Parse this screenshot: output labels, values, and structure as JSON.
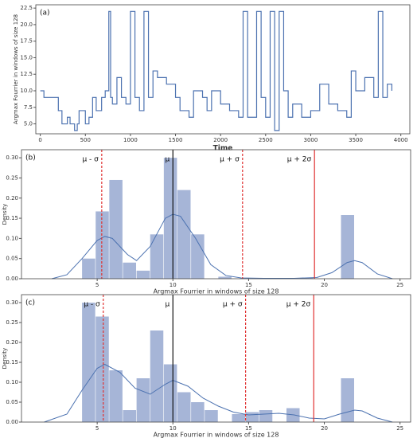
{
  "chart_data": [
    {
      "type": "line",
      "label": "(a)",
      "xlabel": "Time",
      "ylabel": "Argmax Fourrier in windows of size 128",
      "color": "#4c72b0",
      "step": true,
      "x": [
        0,
        40,
        60,
        150,
        200,
        240,
        260,
        300,
        330,
        360,
        380,
        410,
        430,
        450,
        470,
        500,
        540,
        580,
        620,
        680,
        720,
        760,
        780,
        800,
        850,
        900,
        950,
        1000,
        1050,
        1100,
        1150,
        1200,
        1250,
        1300,
        1400,
        1500,
        1550,
        1600,
        1650,
        1700,
        1800,
        1850,
        1900,
        2000,
        2100,
        2200,
        2250,
        2300,
        2400,
        2450,
        2500,
        2550,
        2600,
        2650,
        2700,
        2750,
        2800,
        2900,
        3000,
        3100,
        3200,
        3300,
        3400,
        3450,
        3500,
        3600,
        3700,
        3750,
        3800,
        3850,
        3900
      ],
      "values": [
        10,
        9,
        9,
        9,
        7,
        5,
        5,
        6,
        5,
        5,
        4,
        5,
        7,
        7,
        7,
        5,
        6,
        9,
        7,
        9,
        10,
        22,
        9,
        8,
        12,
        9,
        8,
        22,
        9,
        7,
        22,
        9,
        13,
        12,
        11,
        9,
        7,
        7,
        6,
        10,
        9,
        7,
        10,
        8,
        7,
        6,
        22,
        6,
        22,
        9,
        6,
        22,
        4,
        22,
        10,
        6,
        8,
        6,
        7,
        11,
        8,
        7,
        6,
        13,
        10,
        12,
        9,
        22,
        9,
        11,
        10
      ],
      "xlim": [
        -50,
        4100
      ],
      "ylim": [
        3.5,
        23
      ],
      "xticks": [
        0,
        500,
        1000,
        1500,
        2000,
        2500,
        3000,
        3500,
        4000
      ],
      "yticks": [
        {
          "value": 5,
          "label": "5.0"
        },
        7.5,
        {
          "value": 10,
          "label": "10.0"
        },
        12.5,
        {
          "value": 15,
          "label": "15.0"
        },
        17.5,
        {
          "value": 20,
          "label": "20.0"
        },
        22.5
      ]
    },
    {
      "type": "histogram",
      "label": "(b)",
      "xlabel": "Argmax Fourrier in windows of size 128",
      "ylabel": "Density",
      "color": "#a6b5d7",
      "kde_color": "#4c72b0",
      "bins": [
        4,
        4.9,
        5.8,
        6.7,
        7.6,
        8.5,
        9.4,
        10.3,
        11.2,
        12.1,
        13,
        13.9,
        14.8,
        15.7,
        16.6,
        17.5,
        18.4,
        19.3,
        20.2,
        21.1,
        22
      ],
      "counts": [
        0.05,
        0.167,
        0.245,
        0.04,
        0.02,
        0.11,
        0.3,
        0.22,
        0.11,
        0,
        0.005,
        0,
        0,
        0,
        0,
        0,
        0.002,
        0,
        0,
        0.158
      ],
      "kde": {
        "x": [
          2,
          3,
          4,
          5,
          5.5,
          6,
          7,
          7.6,
          8.5,
          9.5,
          10,
          10.5,
          11.5,
          12.5,
          13.5,
          14.5,
          16,
          18,
          19.5,
          20.5,
          21.5,
          22,
          22.5,
          23.5,
          24.5
        ],
        "values": [
          0,
          0.01,
          0.05,
          0.095,
          0.105,
          0.1,
          0.06,
          0.045,
          0.08,
          0.15,
          0.16,
          0.155,
          0.1,
          0.035,
          0.008,
          0.002,
          0.001,
          0.001,
          0.003,
          0.015,
          0.04,
          0.045,
          0.04,
          0.012,
          0
        ]
      },
      "vlines": [
        {
          "label": "μ - σ",
          "value": 5.3,
          "color": "#e03030",
          "linestyle": "dashed"
        },
        {
          "label": "μ",
          "value": 10,
          "color": "#111111",
          "linestyle": "solid"
        },
        {
          "label": "μ + σ",
          "value": 14.6,
          "color": "#e03030",
          "linestyle": "dashed"
        },
        {
          "label": "μ + 2σ",
          "value": 19.35,
          "color": "#e03030",
          "linestyle": "solid"
        }
      ],
      "xlim": [
        0,
        25.7
      ],
      "ylim": [
        0,
        0.32
      ],
      "xticks": [
        5,
        10,
        15,
        20,
        25
      ],
      "yticks": [
        {
          "value": 0,
          "label": "0.00"
        },
        {
          "value": 0.05,
          "label": "0.05"
        },
        {
          "value": 0.1,
          "label": "0.10"
        },
        {
          "value": 0.15,
          "label": "0.15"
        },
        {
          "value": 0.2,
          "label": "0.20"
        },
        {
          "value": 0.25,
          "label": "0.25"
        },
        {
          "value": 0.3,
          "label": "0.30"
        }
      ]
    },
    {
      "type": "histogram",
      "label": "(c)",
      "xlabel": "Argmax Fourrier in windows of size 128",
      "ylabel": "Density",
      "color": "#a6b5d7",
      "kde_color": "#4c72b0",
      "bins": [
        4,
        4.9,
        5.8,
        6.7,
        7.6,
        8.5,
        9.4,
        10.3,
        11.2,
        12.1,
        13,
        13.9,
        14.8,
        15.7,
        16.6,
        17.5,
        18.4,
        19.3,
        20.2,
        21.1,
        22
      ],
      "counts": [
        0.3,
        0.265,
        0.13,
        0.03,
        0.11,
        0.23,
        0.145,
        0.075,
        0.05,
        0.03,
        0,
        0.02,
        0.025,
        0.03,
        0,
        0.035,
        0,
        0,
        0,
        0.11
      ],
      "kde": {
        "x": [
          1.5,
          3,
          4,
          5,
          5.5,
          6.5,
          7.5,
          8.5,
          9.5,
          10,
          11,
          12,
          13,
          14,
          15,
          16,
          17,
          18,
          19,
          20,
          21,
          22,
          22.5,
          23.5,
          24.5
        ],
        "values": [
          0,
          0.02,
          0.08,
          0.135,
          0.145,
          0.125,
          0.085,
          0.07,
          0.095,
          0.105,
          0.09,
          0.06,
          0.04,
          0.025,
          0.018,
          0.02,
          0.022,
          0.018,
          0.01,
          0.008,
          0.02,
          0.03,
          0.028,
          0.01,
          0
        ]
      },
      "vlines": [
        {
          "label": "μ - σ",
          "value": 5.4,
          "color": "#e03030",
          "linestyle": "dashed"
        },
        {
          "label": "μ",
          "value": 10,
          "color": "#111111",
          "linestyle": "solid"
        },
        {
          "label": "μ + σ",
          "value": 14.8,
          "color": "#e03030",
          "linestyle": "dashed"
        },
        {
          "label": "μ + 2σ",
          "value": 19.3,
          "color": "#e03030",
          "linestyle": "solid"
        }
      ],
      "xlim": [
        0,
        25.7
      ],
      "ylim": [
        0,
        0.32
      ],
      "xticks": [
        5,
        10,
        15,
        20,
        25
      ],
      "yticks": [
        {
          "value": 0,
          "label": "0.00"
        },
        {
          "value": 0.05,
          "label": "0.05"
        },
        {
          "value": 0.1,
          "label": "0.10"
        },
        {
          "value": 0.15,
          "label": "0.15"
        },
        {
          "value": 0.2,
          "label": "0.20"
        },
        {
          "value": 0.25,
          "label": "0.25"
        },
        {
          "value": 0.3,
          "label": "0.30"
        }
      ]
    }
  ]
}
